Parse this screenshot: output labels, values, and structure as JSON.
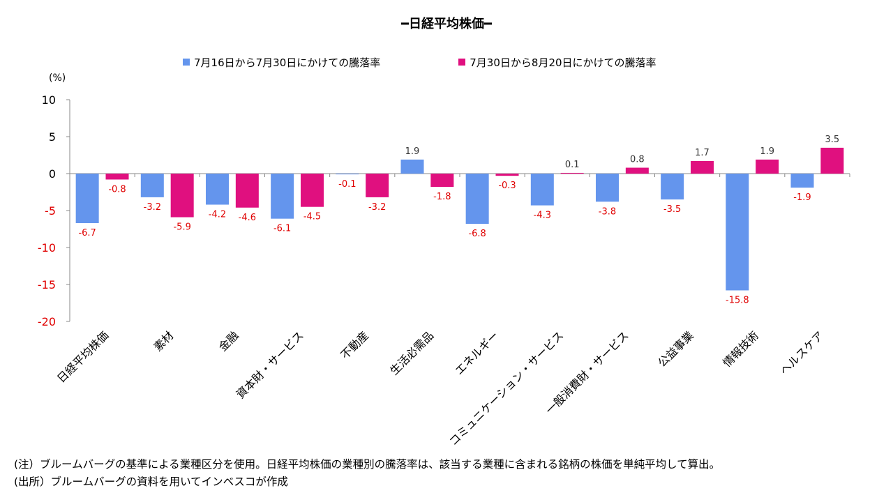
{
  "title": "━日経平均株価━",
  "unit_label": "(%)",
  "colors": {
    "series1": "#6495ED",
    "series2": "#E0107F",
    "negative_label": "#E00000",
    "axis": "#888888"
  },
  "chart_data": {
    "type": "bar",
    "title": "━日経平均株価━",
    "ylabel": "(%)",
    "xlabel": "",
    "ylim": [
      -20,
      10
    ],
    "yticks": [
      10,
      5,
      0,
      -5,
      -10,
      -15,
      -20
    ],
    "legend_position": "top",
    "categories": [
      "日経平均株価",
      "素材",
      "金融",
      "資本財・サービス",
      "不動産",
      "生活必需品",
      "エネルギー",
      "コミュニケーション・サービス",
      "一般消費財・サービス",
      "公益事業",
      "情報技術",
      "ヘルスケア"
    ],
    "series": [
      {
        "name": "7月16日から7月30日にかけての騰落率",
        "values": [
          -6.7,
          -3.2,
          -4.2,
          -6.1,
          -0.1,
          1.9,
          -6.8,
          -4.3,
          -3.8,
          -3.5,
          -15.8,
          -1.9
        ]
      },
      {
        "name": "7月30日から8月20日にかけての騰落率",
        "values": [
          -0.8,
          -5.9,
          -4.6,
          -4.5,
          -3.2,
          -1.8,
          -0.3,
          0.1,
          0.8,
          1.7,
          1.9,
          3.5
        ]
      }
    ]
  },
  "notes": [
    "(注）ブルームバーグの基準による業種区分を使用。日経平均株価の業種別の騰落率は、該当する業種に含まれる銘柄の株価を単純平均して算出。",
    "(出所）ブルームバーグの資料を用いてインベスコが作成"
  ]
}
